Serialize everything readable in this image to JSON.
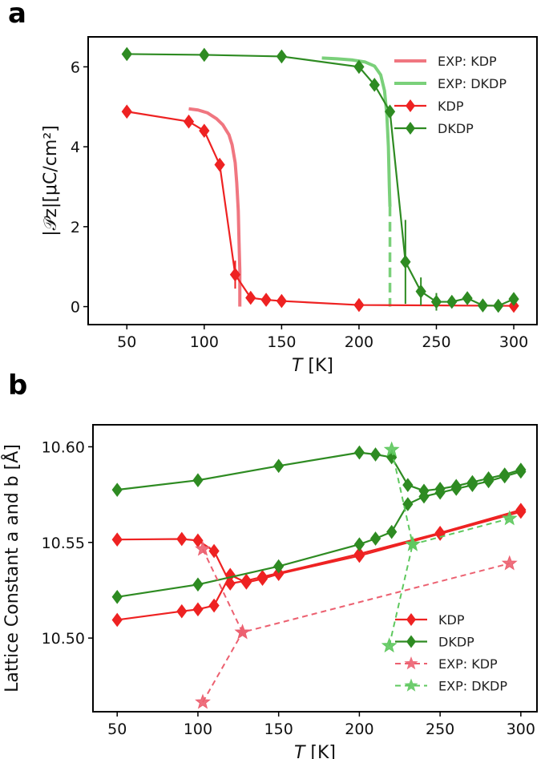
{
  "chart_data": [
    {
      "panel": "a",
      "type": "line",
      "xlabel_italic": "T",
      "xlabel_units": " [K]",
      "ylabel": "|𝒫z|[μC/cm²]",
      "xlim": [
        25,
        315
      ],
      "ylim": [
        -0.45,
        6.75
      ],
      "xticks": [
        50,
        100,
        150,
        200,
        250,
        300
      ],
      "yticks": [
        0,
        2,
        4,
        6
      ],
      "legend": [
        "EXP: KDP",
        "EXP: DKDP",
        "KDP",
        "DKDP"
      ],
      "series": [
        {
          "name": "EXP: KDP",
          "color": "#f07680",
          "style": "exp-solid",
          "x": [
            90,
            96,
            102,
            108,
            112,
            116,
            118,
            120,
            121,
            122,
            122.5,
            123,
            123
          ],
          "y": [
            4.95,
            4.92,
            4.85,
            4.7,
            4.55,
            4.3,
            4.05,
            3.6,
            3.1,
            2.4,
            1.6,
            0.9,
            0.0
          ]
        },
        {
          "name": "EXP: DKDP",
          "color": "#7ad07a",
          "style": "exp-solid",
          "x": [
            176,
            186,
            196,
            204,
            210,
            214,
            216.5,
            218,
            219,
            219.6,
            220
          ],
          "y": [
            6.22,
            6.2,
            6.17,
            6.12,
            6.02,
            5.8,
            5.4,
            4.8,
            4.0,
            3.0,
            2.5
          ],
          "dash_x": [
            220,
            220
          ],
          "dash_y": [
            2.5,
            0.0
          ]
        },
        {
          "name": "KDP",
          "color": "#ee2222",
          "style": "sim",
          "x": [
            50,
            90,
            100,
            110,
            120,
            130,
            140,
            150,
            200,
            300
          ],
          "y": [
            4.88,
            4.63,
            4.4,
            3.55,
            0.8,
            0.22,
            0.17,
            0.14,
            0.04,
            0.02
          ],
          "err": [
            0,
            0,
            0,
            0,
            0.35,
            0,
            0,
            0,
            0,
            0
          ]
        },
        {
          "name": "DKDP",
          "color": "#2e8b22",
          "style": "sim",
          "x": [
            50,
            100,
            150,
            200,
            210,
            220,
            230,
            240,
            250,
            260,
            270,
            280,
            290,
            300
          ],
          "y": [
            6.32,
            6.3,
            6.26,
            6.0,
            5.55,
            4.88,
            1.12,
            0.38,
            0.12,
            0.12,
            0.21,
            0.03,
            0.02,
            0.19
          ],
          "err": [
            0,
            0,
            0,
            0,
            0,
            0,
            1.05,
            0.35,
            0.22,
            0.12,
            0.12,
            0,
            0,
            0.12
          ]
        }
      ]
    },
    {
      "panel": "b",
      "type": "line",
      "xlabel_italic": "T",
      "xlabel_units": " [K]",
      "ylabel": "Lattice Constant a and b [Å]",
      "xlim": [
        35,
        310
      ],
      "ylim": [
        10.4615,
        10.6115
      ],
      "xticks": [
        50,
        100,
        150,
        200,
        250,
        300
      ],
      "yticks": [
        10.5,
        10.55,
        10.6
      ],
      "ytick_labels": [
        "10.50",
        "10.55",
        "10.60"
      ],
      "legend": [
        "KDP",
        "DKDP",
        "EXP: KDP",
        "EXP: DKDP"
      ],
      "series": [
        {
          "name": "KDP",
          "color": "#ee2222",
          "style": "sim",
          "lines": [
            {
              "x": [
                50,
                90,
                100,
                110,
                120,
                130,
                140,
                150,
                200,
                250,
                300
              ],
              "y": [
                10.5515,
                10.5518,
                10.551,
                10.5455,
                10.5285,
                10.53,
                10.532,
                10.534,
                10.544,
                10.555,
                10.567
              ]
            },
            {
              "x": [
                50,
                90,
                100,
                110,
                120,
                130,
                140,
                150,
                200,
                250,
                300
              ],
              "y": [
                10.5095,
                10.514,
                10.515,
                10.517,
                10.533,
                10.529,
                10.531,
                10.5335,
                10.543,
                10.5545,
                10.566
              ]
            }
          ]
        },
        {
          "name": "DKDP",
          "color": "#2e8b22",
          "style": "sim",
          "lines": [
            {
              "x": [
                50,
                100,
                150,
                200,
                210,
                220,
                230,
                240,
                250,
                260,
                270,
                280,
                290,
                300
              ],
              "y": [
                10.5775,
                10.5825,
                10.59,
                10.597,
                10.596,
                10.5945,
                10.58,
                10.577,
                10.578,
                10.5795,
                10.5815,
                10.5835,
                10.5855,
                10.588
              ]
            },
            {
              "x": [
                50,
                100,
                150,
                200,
                210,
                220,
                230,
                240,
                250,
                260,
                270,
                280,
                290,
                300
              ],
              "y": [
                10.5215,
                10.528,
                10.5375,
                10.549,
                10.552,
                10.5555,
                10.57,
                10.574,
                10.576,
                10.578,
                10.58,
                10.582,
                10.5845,
                10.587
              ]
            }
          ]
        },
        {
          "name": "EXP: KDP",
          "color": "#ec6070",
          "style": "exp-dash",
          "lines": [
            {
              "x": [
                103,
                127.6,
                293
              ],
              "y": [
                10.5465,
                10.503,
                10.539
              ]
            },
            {
              "x": [
                103,
                127.6
              ],
              "y": [
                10.4665,
                10.503
              ]
            }
          ]
        },
        {
          "name": "EXP: DKDP",
          "color": "#5ec85e",
          "style": "exp-dash",
          "lines": [
            {
              "x": [
                220,
                233,
                293
              ],
              "y": [
                10.5985,
                10.549,
                10.5625
              ]
            },
            {
              "x": [
                218.5,
                233
              ],
              "y": [
                10.496,
                10.549
              ]
            }
          ]
        }
      ]
    }
  ]
}
